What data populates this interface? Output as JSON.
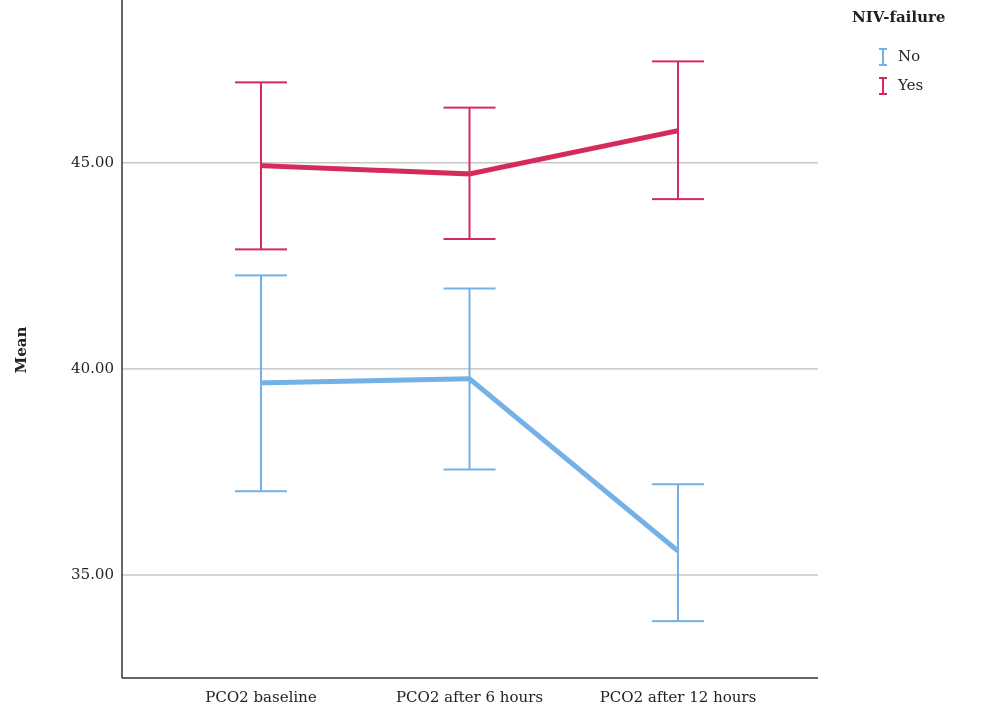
{
  "chart_data": {
    "type": "line",
    "y_label": "Mean",
    "legend_title": "NIV-failure",
    "categories": [
      "PCO2 baseline",
      "PCO2 after 6 hours",
      "PCO2 after 12 hours"
    ],
    "series": [
      {
        "name": "No",
        "color": "#74b1e6",
        "values": [
          39.66,
          39.76,
          35.58
        ],
        "lower": [
          37.03,
          37.56,
          33.88
        ],
        "upper": [
          42.27,
          41.95,
          37.2
        ]
      },
      {
        "name": "Yes",
        "color": "#d42a5c",
        "values": [
          44.93,
          44.73,
          45.78
        ],
        "lower": [
          42.9,
          43.15,
          44.12
        ],
        "upper": [
          46.95,
          46.34,
          47.46
        ]
      }
    ],
    "ylim": [
      32.5,
      48.95
    ],
    "yticks": [
      {
        "value": 35,
        "label": "35.00"
      },
      {
        "value": 40,
        "label": "40.00"
      },
      {
        "value": 45,
        "label": "45.00"
      }
    ],
    "grid": true
  }
}
